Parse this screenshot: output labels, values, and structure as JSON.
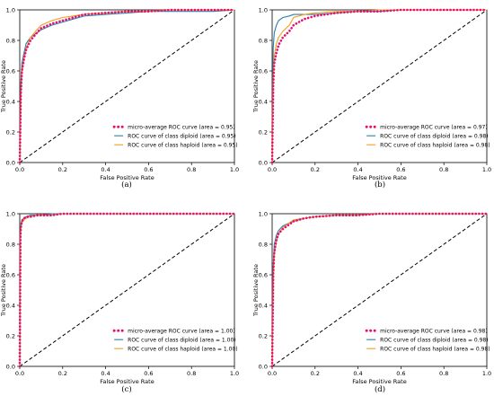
{
  "figure": {
    "xlabel": "False Positive Rate",
    "ylabel": "True Positive Rate",
    "xticks": [
      "0.0",
      "0.2",
      "0.4",
      "0.6",
      "0.8",
      "1.0"
    ],
    "yticks": [
      "0.0",
      "0.2",
      "0.4",
      "0.6",
      "0.8",
      "1.0"
    ]
  },
  "colors": {
    "micro": "#e8106e",
    "diploid": "#2a7fb0",
    "haploid": "#f0a020",
    "chance": "#000000"
  },
  "chart_data": [
    {
      "type": "line",
      "caption": "(a)",
      "xlabel": "False Positive Rate",
      "ylabel": "True Positive Rate",
      "xlim": [
        0,
        1
      ],
      "ylim": [
        0,
        1
      ],
      "legend_position": "bottom-right",
      "series": [
        {
          "name": "micro-average ROC curve (area = 0.95)",
          "style": "dotted",
          "x": [
            0,
            0.005,
            0.01,
            0.02,
            0.03,
            0.05,
            0.08,
            0.1,
            0.15,
            0.2,
            0.25,
            0.3,
            0.4,
            0.5,
            0.6,
            0.7,
            0.8,
            0.9,
            1.0
          ],
          "y": [
            0,
            0.45,
            0.6,
            0.68,
            0.74,
            0.8,
            0.85,
            0.88,
            0.91,
            0.93,
            0.95,
            0.97,
            0.98,
            0.99,
            0.99,
            1.0,
            1.0,
            1.0,
            1.0
          ]
        },
        {
          "name": "ROC curve of class diploid (area = 0.95)",
          "style": "solid",
          "x": [
            0,
            0.005,
            0.01,
            0.02,
            0.03,
            0.05,
            0.08,
            0.1,
            0.15,
            0.2,
            0.25,
            0.3,
            0.4,
            0.5,
            0.6,
            0.7,
            0.8,
            0.9,
            1.0
          ],
          "y": [
            0,
            0.5,
            0.65,
            0.72,
            0.78,
            0.82,
            0.85,
            0.87,
            0.9,
            0.92,
            0.94,
            0.96,
            0.97,
            0.98,
            0.99,
            0.99,
            0.99,
            0.99,
            1.0
          ]
        },
        {
          "name": "ROC curve of class haploid (area = 0.95)",
          "style": "solid",
          "x": [
            0,
            0.005,
            0.01,
            0.02,
            0.03,
            0.05,
            0.08,
            0.1,
            0.15,
            0.2,
            0.25,
            0.3,
            0.4,
            0.5,
            0.6,
            0.7,
            0.8,
            0.9,
            1.0
          ],
          "y": [
            0,
            0.4,
            0.58,
            0.68,
            0.75,
            0.82,
            0.87,
            0.9,
            0.93,
            0.95,
            0.96,
            0.97,
            0.98,
            0.99,
            0.99,
            1.0,
            1.0,
            1.0,
            1.0
          ]
        },
        {
          "name": "chance",
          "style": "dashed",
          "x": [
            0,
            1
          ],
          "y": [
            0,
            1
          ]
        }
      ]
    },
    {
      "type": "line",
      "caption": "(b)",
      "xlabel": "False Positive Rate",
      "ylabel": "True Positive Rate",
      "xlim": [
        0,
        1
      ],
      "ylim": [
        0,
        1
      ],
      "legend_position": "bottom-right",
      "series": [
        {
          "name": "micro-average ROC curve (area = 0.97)",
          "style": "dotted",
          "x": [
            0,
            0.005,
            0.01,
            0.02,
            0.03,
            0.05,
            0.08,
            0.1,
            0.15,
            0.2,
            0.3,
            0.4,
            0.5,
            0.6,
            0.7,
            0.8,
            0.9,
            1.0
          ],
          "y": [
            0,
            0.5,
            0.65,
            0.72,
            0.77,
            0.82,
            0.86,
            0.9,
            0.94,
            0.96,
            0.98,
            0.99,
            0.99,
            1.0,
            1.0,
            1.0,
            1.0,
            1.0
          ]
        },
        {
          "name": "ROC curve of class diploid (area = 0.98)",
          "style": "solid",
          "x": [
            0,
            0.005,
            0.01,
            0.02,
            0.03,
            0.05,
            0.08,
            0.1,
            0.15,
            0.2,
            0.3,
            0.4,
            0.5,
            0.6,
            0.7,
            0.8,
            0.9,
            1.0
          ],
          "y": [
            0,
            0.75,
            0.85,
            0.9,
            0.93,
            0.95,
            0.96,
            0.97,
            0.97,
            0.97,
            0.98,
            0.99,
            0.99,
            1.0,
            1.0,
            1.0,
            1.0,
            1.0
          ]
        },
        {
          "name": "ROC curve of class haploid (area = 0.98)",
          "style": "solid",
          "x": [
            0,
            0.005,
            0.01,
            0.02,
            0.03,
            0.05,
            0.08,
            0.1,
            0.15,
            0.2,
            0.3,
            0.4,
            0.5,
            0.6,
            0.7,
            0.8,
            0.9,
            1.0
          ],
          "y": [
            0,
            0.55,
            0.7,
            0.78,
            0.82,
            0.86,
            0.9,
            0.95,
            0.97,
            0.98,
            0.99,
            0.99,
            1.0,
            1.0,
            1.0,
            1.0,
            1.0,
            1.0
          ]
        },
        {
          "name": "chance",
          "style": "dashed",
          "x": [
            0,
            1
          ],
          "y": [
            0,
            1
          ]
        }
      ]
    },
    {
      "type": "line",
      "caption": "(c)",
      "xlabel": "False Positive Rate",
      "ylabel": "True Positive Rate",
      "xlim": [
        0,
        1
      ],
      "ylim": [
        0,
        1
      ],
      "legend_position": "bottom-right",
      "series": [
        {
          "name": "micro-average ROC curve (area = 1.00)",
          "style": "dotted",
          "x": [
            0,
            0.003,
            0.006,
            0.01,
            0.02,
            0.03,
            0.05,
            0.08,
            0.1,
            0.15,
            0.2,
            0.3,
            0.4,
            0.5,
            0.6,
            0.7,
            0.8,
            0.9,
            1.0
          ],
          "y": [
            0,
            0.85,
            0.92,
            0.95,
            0.97,
            0.98,
            0.98,
            0.99,
            0.99,
            0.99,
            1.0,
            1.0,
            1.0,
            1.0,
            1.0,
            1.0,
            1.0,
            1.0,
            1.0
          ]
        },
        {
          "name": "ROC curve of class diploid (area = 1.00)",
          "style": "solid",
          "x": [
            0,
            0.003,
            0.006,
            0.01,
            0.02,
            0.03,
            0.05,
            0.08,
            0.1,
            0.15,
            0.2,
            0.3,
            0.4,
            0.5,
            0.6,
            0.7,
            0.8,
            0.9,
            1.0
          ],
          "y": [
            0,
            0.88,
            0.93,
            0.96,
            0.97,
            0.98,
            0.99,
            0.99,
            0.99,
            1.0,
            1.0,
            1.0,
            1.0,
            1.0,
            1.0,
            1.0,
            1.0,
            1.0,
            1.0
          ]
        },
        {
          "name": "ROC curve of class haploid (area = 1.00)",
          "style": "solid",
          "x": [
            0,
            0.003,
            0.006,
            0.01,
            0.02,
            0.03,
            0.05,
            0.08,
            0.1,
            0.15,
            0.2,
            0.3,
            0.4,
            0.5,
            0.6,
            0.7,
            0.8,
            0.9,
            1.0
          ],
          "y": [
            0,
            0.82,
            0.9,
            0.94,
            0.96,
            0.97,
            0.98,
            0.99,
            0.99,
            0.99,
            1.0,
            1.0,
            1.0,
            1.0,
            1.0,
            1.0,
            1.0,
            1.0,
            1.0
          ]
        },
        {
          "name": "chance",
          "style": "dashed",
          "x": [
            0,
            1
          ],
          "y": [
            0,
            1
          ]
        }
      ]
    },
    {
      "type": "line",
      "caption": "(d)",
      "xlabel": "False Positive Rate",
      "ylabel": "True Positive Rate",
      "xlim": [
        0,
        1
      ],
      "ylim": [
        0,
        1
      ],
      "legend_position": "bottom-right",
      "series": [
        {
          "name": "micro-average ROC curve (area = 0.98)",
          "style": "dotted",
          "x": [
            0,
            0.005,
            0.01,
            0.02,
            0.03,
            0.05,
            0.08,
            0.1,
            0.15,
            0.2,
            0.3,
            0.4,
            0.5,
            0.6,
            0.7,
            0.8,
            0.9,
            1.0
          ],
          "y": [
            0,
            0.6,
            0.75,
            0.83,
            0.87,
            0.9,
            0.93,
            0.95,
            0.97,
            0.98,
            0.99,
            0.99,
            1.0,
            1.0,
            1.0,
            1.0,
            1.0,
            1.0
          ]
        },
        {
          "name": "ROC curve of class diploid (area = 0.98)",
          "style": "solid",
          "x": [
            0,
            0.005,
            0.01,
            0.02,
            0.03,
            0.05,
            0.08,
            0.1,
            0.15,
            0.2,
            0.3,
            0.4,
            0.5,
            0.6,
            0.7,
            0.8,
            0.9,
            1.0
          ],
          "y": [
            0,
            0.65,
            0.8,
            0.86,
            0.89,
            0.92,
            0.94,
            0.95,
            0.97,
            0.98,
            0.99,
            0.99,
            1.0,
            1.0,
            1.0,
            1.0,
            1.0,
            1.0
          ]
        },
        {
          "name": "ROC curve of class haploid (area = 0.98)",
          "style": "solid",
          "x": [
            0,
            0.005,
            0.01,
            0.02,
            0.03,
            0.05,
            0.08,
            0.1,
            0.15,
            0.2,
            0.3,
            0.4,
            0.5,
            0.6,
            0.7,
            0.8,
            0.9,
            1.0
          ],
          "y": [
            0,
            0.55,
            0.72,
            0.82,
            0.87,
            0.91,
            0.94,
            0.96,
            0.97,
            0.98,
            0.99,
            0.99,
            1.0,
            1.0,
            1.0,
            1.0,
            1.0,
            1.0
          ]
        },
        {
          "name": "chance",
          "style": "dashed",
          "x": [
            0,
            1
          ],
          "y": [
            0,
            1
          ]
        }
      ]
    }
  ]
}
